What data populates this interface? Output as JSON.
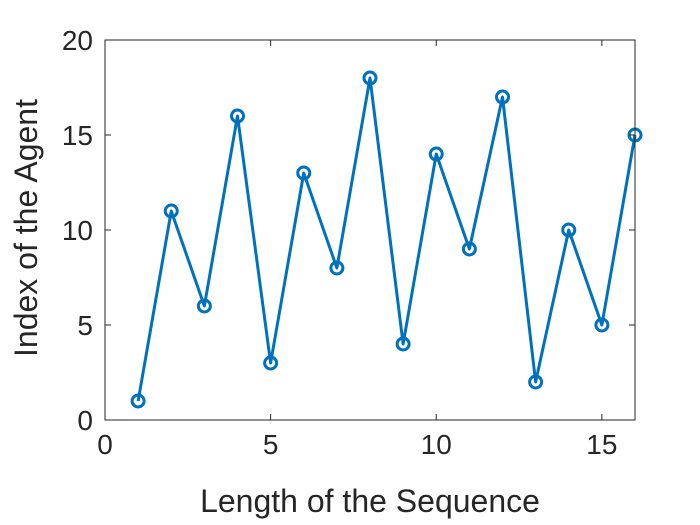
{
  "chart_data": {
    "type": "line",
    "title": "",
    "xlabel": "Length of the Sequence",
    "ylabel": "Index of the Agent",
    "xlim": [
      0,
      16
    ],
    "ylim": [
      0,
      20
    ],
    "xticks": [
      0,
      5,
      10,
      15
    ],
    "yticks": [
      0,
      5,
      10,
      15,
      20
    ],
    "grid": false,
    "marker": "circle",
    "colors": {
      "series": "#0072BD",
      "axis": "#262626"
    },
    "series": [
      {
        "x": [
          1,
          2,
          3,
          4,
          5,
          6,
          7,
          8,
          9,
          10,
          11,
          12,
          13,
          14,
          15,
          16
        ],
        "y": [
          1,
          11,
          6,
          16,
          3,
          13,
          8,
          18,
          4,
          14,
          9,
          17,
          2,
          10,
          5,
          15
        ]
      }
    ]
  }
}
